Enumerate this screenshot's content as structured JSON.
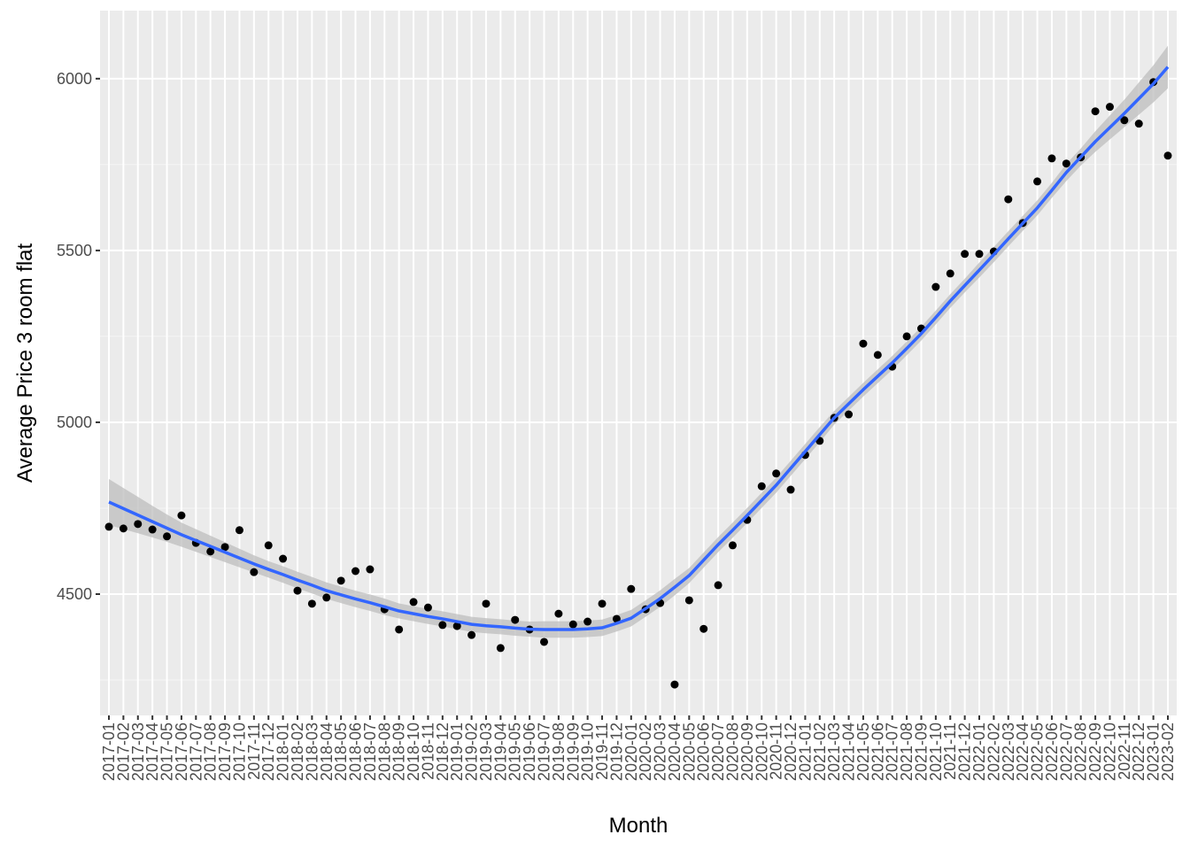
{
  "chart_data": {
    "type": "scatter",
    "x_label": "Month",
    "y_label": "Average Price 3 room flat",
    "categories": [
      "2017-01",
      "2017-02",
      "2017-03",
      "2017-04",
      "2017-05",
      "2017-06",
      "2017-07",
      "2017-08",
      "2017-09",
      "2017-10",
      "2017-11",
      "2017-12",
      "2018-01",
      "2018-02",
      "2018-03",
      "2018-04",
      "2018-05",
      "2018-06",
      "2018-07",
      "2018-08",
      "2018-09",
      "2018-10",
      "2018-11",
      "2018-12",
      "2019-01",
      "2019-02",
      "2019-03",
      "2019-04",
      "2019-05",
      "2019-06",
      "2019-07",
      "2019-08",
      "2019-09",
      "2019-10",
      "2019-11",
      "2019-12",
      "2020-01",
      "2020-02",
      "2020-03",
      "2020-04",
      "2020-05",
      "2020-06",
      "2020-07",
      "2020-08",
      "2020-09",
      "2020-10",
      "2020-11",
      "2020-12",
      "2021-01",
      "2021-02",
      "2021-03",
      "2021-04",
      "2021-05",
      "2021-06",
      "2021-07",
      "2021-08",
      "2021-09",
      "2021-10",
      "2021-11",
      "2021-12",
      "2022-01",
      "2022-02",
      "2022-03",
      "2022-04",
      "2022-05",
      "2022-06",
      "2022-07",
      "2022-08",
      "2022-09",
      "2022-10",
      "2022-11",
      "2022-12",
      "2023-01",
      "2023-02"
    ],
    "values": [
      4696,
      4691,
      4704,
      4688,
      4668,
      4729,
      4649,
      4624,
      4637,
      4686,
      4564,
      4642,
      4603,
      4510,
      4472,
      4490,
      4539,
      4567,
      4572,
      4456,
      4397,
      4477,
      4461,
      4410,
      4407,
      4381,
      4472,
      4343,
      4425,
      4397,
      4361,
      4443,
      4412,
      4420,
      4472,
      4428,
      4515,
      4456,
      4474,
      4237,
      4482,
      4399,
      4526,
      4642,
      4716,
      4814,
      4851,
      4804,
      4905,
      4946,
      5013,
      5023,
      5229,
      5196,
      5162,
      5250,
      5273,
      5394,
      5433,
      5490,
      5490,
      5497,
      5649,
      5580,
      5701,
      5768,
      5753,
      5771,
      5905,
      5918,
      5879,
      5869,
      5990,
      5776
    ],
    "color": "#000000",
    "smooth": {
      "color": "#3366ff",
      "band_color": "#bdbdbd",
      "values": [
        4768,
        4749,
        4730,
        4711,
        4692,
        4673,
        4656,
        4639,
        4622,
        4605,
        4588,
        4572,
        4557,
        4541,
        4526,
        4510,
        4498,
        4486,
        4475,
        4463,
        4451,
        4443,
        4435,
        4428,
        4420,
        4412,
        4408,
        4405,
        4401,
        4398,
        4397,
        4397,
        4397,
        4399,
        4402,
        4415,
        4430,
        4458,
        4487,
        4520,
        4554,
        4599,
        4644,
        4686,
        4729,
        4773,
        4817,
        4866,
        4915,
        4964,
        5013,
        5054,
        5095,
        5134,
        5173,
        5215,
        5258,
        5305,
        5353,
        5398,
        5443,
        5488,
        5534,
        5579,
        5624,
        5675,
        5727,
        5772,
        5817,
        5858,
        5899,
        5942,
        5985,
        6034
      ],
      "lower": [
        4701,
        4689,
        4677,
        4665,
        4652,
        4638,
        4623,
        4608,
        4593,
        4578,
        4563,
        4548,
        4533,
        4517,
        4502,
        4486,
        4474,
        4462,
        4451,
        4439,
        4429,
        4421,
        4413,
        4406,
        4398,
        4390,
        4386,
        4383,
        4379,
        4376,
        4373,
        4373,
        4373,
        4375,
        4378,
        4391,
        4406,
        4434,
        4463,
        4496,
        4532,
        4577,
        4622,
        4664,
        4707,
        4751,
        4795,
        4844,
        4893,
        4942,
        4993,
        5034,
        5075,
        5114,
        5153,
        5195,
        5238,
        5285,
        5333,
        5378,
        5421,
        5466,
        5512,
        5557,
        5602,
        5653,
        5702,
        5747,
        5787,
        5823,
        5859,
        5895,
        5931,
        5972
      ],
      "upper": [
        4835,
        4809,
        4783,
        4757,
        4732,
        4708,
        4689,
        4670,
        4651,
        4632,
        4613,
        4596,
        4581,
        4565,
        4550,
        4534,
        4522,
        4510,
        4499,
        4487,
        4473,
        4465,
        4457,
        4450,
        4442,
        4434,
        4430,
        4427,
        4423,
        4420,
        4421,
        4421,
        4421,
        4423,
        4426,
        4439,
        4454,
        4482,
        4511,
        4544,
        4576,
        4621,
        4666,
        4708,
        4751,
        4795,
        4839,
        4888,
        4937,
        4986,
        5033,
        5074,
        5115,
        5154,
        5193,
        5235,
        5278,
        5325,
        5373,
        5418,
        5465,
        5510,
        5556,
        5601,
        5646,
        5697,
        5752,
        5797,
        5847,
        5893,
        5939,
        5989,
        6039,
        6096
      ]
    },
    "ylim": [
      4147,
      6198
    ],
    "yticks": [
      4500,
      5000,
      5500,
      6000
    ],
    "y_minor_grid": [
      4250,
      4750,
      5250,
      5750
    ],
    "grid": true
  }
}
